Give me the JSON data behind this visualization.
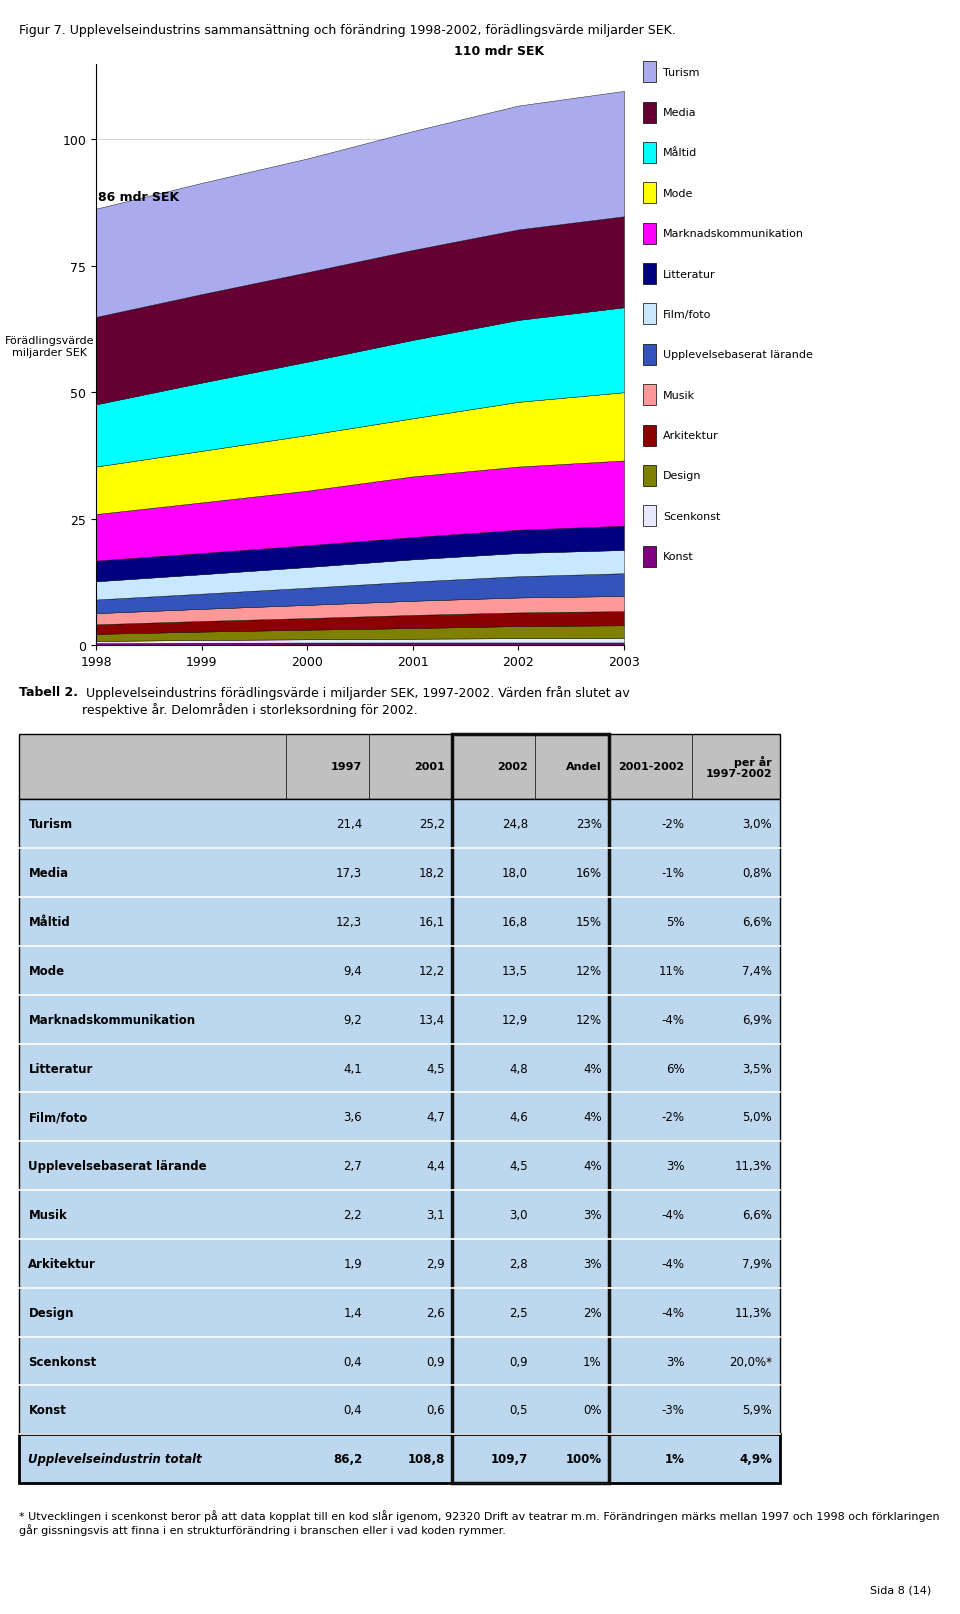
{
  "fig_title": "Figur 7. Upplevelseindustrins sammansättning och förändring 1998-2002, förädlingsvärde miljarder SEK.",
  "chart_ylabel": "Förädlingsvärde\n  miljarder SEK",
  "chart_annotation_left": "86 mdr SEK",
  "chart_annotation_right": "110 mdr SEK",
  "years": [
    1998,
    1999,
    2000,
    2001,
    2002,
    2003
  ],
  "series": [
    {
      "name": "Konst",
      "color": "#800080",
      "values": [
        0.4,
        0.45,
        0.48,
        0.5,
        0.5,
        0.5
      ]
    },
    {
      "name": "Scenkonst",
      "color": "#E8E8FF",
      "values": [
        0.4,
        0.55,
        0.65,
        0.75,
        0.85,
        0.9
      ]
    },
    {
      "name": "Design",
      "color": "#808000",
      "values": [
        1.4,
        1.65,
        1.9,
        2.1,
        2.4,
        2.5
      ]
    },
    {
      "name": "Arkitektur",
      "color": "#8B0000",
      "values": [
        1.9,
        2.1,
        2.3,
        2.6,
        2.7,
        2.8
      ]
    },
    {
      "name": "Musik",
      "color": "#FF9999",
      "values": [
        2.2,
        2.4,
        2.6,
        2.8,
        2.95,
        3.0
      ]
    },
    {
      "name": "Upplevelsebaserat lärande",
      "color": "#3355BB",
      "values": [
        2.7,
        3.0,
        3.4,
        3.8,
        4.2,
        4.5
      ]
    },
    {
      "name": "Film/foto",
      "color": "#C8E8FF",
      "values": [
        3.6,
        3.85,
        4.1,
        4.4,
        4.6,
        4.6
      ]
    },
    {
      "name": "Litteratur",
      "color": "#000080",
      "values": [
        4.1,
        4.2,
        4.3,
        4.4,
        4.6,
        4.8
      ]
    },
    {
      "name": "Marknadskommunikation",
      "color": "#FF00FF",
      "values": [
        9.2,
        10.0,
        10.8,
        12.0,
        12.5,
        12.9
      ]
    },
    {
      "name": "Mode",
      "color": "#FFFF00",
      "values": [
        9.4,
        10.2,
        11.0,
        11.5,
        12.8,
        13.5
      ]
    },
    {
      "name": "Måltid",
      "color": "#00FFFF",
      "values": [
        12.3,
        13.5,
        14.5,
        15.5,
        16.2,
        16.8
      ]
    },
    {
      "name": "Media",
      "color": "#660033",
      "values": [
        17.3,
        17.5,
        17.7,
        17.8,
        17.9,
        18.0
      ]
    },
    {
      "name": "Turism",
      "color": "#AAAAEE",
      "values": [
        21.4,
        22.0,
        22.5,
        23.5,
        24.5,
        24.8
      ]
    }
  ],
  "yticks": [
    0,
    25,
    50,
    75,
    100
  ],
  "ylim": [
    0,
    115
  ],
  "table_title_bold": "Tabell 2.",
  "table_title_rest": " Upplevelseindustrins förädlingsvärde i miljarder SEK, 1997-2002. Värden från slutet av respektive år. Delområden i storleksordning för 2002.",
  "table_headers": [
    "",
    "1997",
    "2001",
    "2002",
    "Andel",
    "2001-2002",
    "per år\n1997-2002"
  ],
  "table_rows": [
    [
      "Turism",
      "21,4",
      "25,2",
      "24,8",
      "23%",
      "-2%",
      "3,0%"
    ],
    [
      "Media",
      "17,3",
      "18,2",
      "18,0",
      "16%",
      "-1%",
      "0,8%"
    ],
    [
      "Måltid",
      "12,3",
      "16,1",
      "16,8",
      "15%",
      "5%",
      "6,6%"
    ],
    [
      "Mode",
      "9,4",
      "12,2",
      "13,5",
      "12%",
      "11%",
      "7,4%"
    ],
    [
      "Marknadskommunikation",
      "9,2",
      "13,4",
      "12,9",
      "12%",
      "-4%",
      "6,9%"
    ],
    [
      "Litteratur",
      "4,1",
      "4,5",
      "4,8",
      "4%",
      "6%",
      "3,5%"
    ],
    [
      "Film/foto",
      "3,6",
      "4,7",
      "4,6",
      "4%",
      "-2%",
      "5,0%"
    ],
    [
      "Upplevelsebaserat lärande",
      "2,7",
      "4,4",
      "4,5",
      "4%",
      "3%",
      "11,3%"
    ],
    [
      "Musik",
      "2,2",
      "3,1",
      "3,0",
      "3%",
      "-4%",
      "6,6%"
    ],
    [
      "Arkitektur",
      "1,9",
      "2,9",
      "2,8",
      "3%",
      "-4%",
      "7,9%"
    ],
    [
      "Design",
      "1,4",
      "2,6",
      "2,5",
      "2%",
      "-4%",
      "11,3%"
    ],
    [
      "Scenkonst",
      "0,4",
      "0,9",
      "0,9",
      "1%",
      "3%",
      "20,0%*"
    ],
    [
      "Konst",
      "0,4",
      "0,6",
      "0,5",
      "0%",
      "-3%",
      "5,9%"
    ]
  ],
  "table_total_row": [
    "Upplevelseindustrin totalt",
    "86,2",
    "108,8",
    "109,7",
    "100%",
    "1%",
    "4,9%"
  ],
  "footnote_normal": "* Utvecklingen i scenkonst beror på att data kopplat till ",
  "footnote_italic": "en",
  "footnote_normal2": " kod slår igenom, ",
  "footnote_italic2": "92320 Drift av teatrar m.m.",
  "footnote_normal3": " Förändringen märks mellan 1997 och 1998 och förklaringen går gissningsvis att finna i en strukturförändring i branschen eller i vad koden rymmer.",
  "page_note": "Sida 8 (14)"
}
